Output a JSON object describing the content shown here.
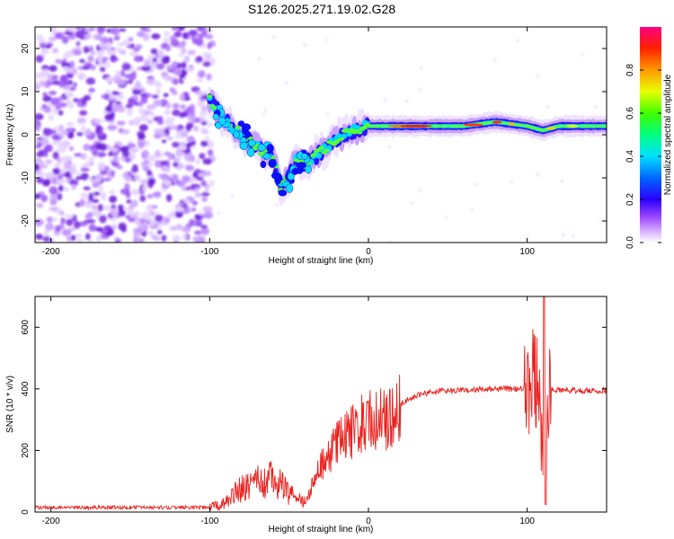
{
  "title": "S126.2025.271.19.02.G28",
  "chart_data": [
    {
      "type": "heatmap",
      "xlabel": "Height of straight line (km)",
      "ylabel": "Frequency (Hz)",
      "xlim": [
        -210,
        150
      ],
      "ylim": [
        -25,
        25
      ],
      "x_ticks": [
        -200,
        -100,
        0,
        100
      ],
      "y_ticks": [
        -20,
        -10,
        0,
        10,
        20
      ],
      "colorbar": {
        "label": "Normalized spectral amplitude",
        "range": [
          0,
          1
        ],
        "ticks": [
          0.0,
          0.2,
          0.4,
          0.6,
          0.8
        ]
      },
      "ridge": {
        "x": [
          -100,
          -90,
          -80,
          -70,
          -60,
          -55,
          -50,
          -45,
          -40,
          -30,
          -20,
          -10,
          0,
          20,
          40,
          60,
          80,
          100,
          110,
          120,
          150
        ],
        "frequency": [
          8,
          3,
          0,
          -3,
          -6,
          -12,
          -10,
          -5,
          -7,
          -4,
          -1,
          1,
          2,
          2,
          2,
          2,
          3,
          2,
          1,
          2,
          2
        ]
      },
      "noise_region_x": [
        -210,
        -100
      ]
    },
    {
      "type": "line",
      "xlabel": "Height of straight line (km)",
      "ylabel": "SNR (10 * v/v)",
      "xlim": [
        -210,
        150
      ],
      "ylim": [
        0,
        700
      ],
      "x_ticks": [
        -200,
        -100,
        0,
        100
      ],
      "y_ticks": [
        0,
        200,
        400,
        600
      ],
      "series": [
        {
          "name": "SNR",
          "color": "#e8211e",
          "x": [
            -210,
            -180,
            -150,
            -120,
            -100,
            -90,
            -80,
            -70,
            -60,
            -50,
            -40,
            -30,
            -20,
            -10,
            0,
            10,
            20,
            30,
            40,
            60,
            80,
            100,
            105,
            110,
            115,
            120,
            150
          ],
          "y": [
            15,
            15,
            15,
            15,
            15,
            30,
            80,
            100,
            110,
            60,
            30,
            150,
            220,
            260,
            300,
            300,
            350,
            380,
            390,
            395,
            400,
            400,
            450,
            200,
            400,
            395,
            395
          ]
        }
      ]
    }
  ]
}
